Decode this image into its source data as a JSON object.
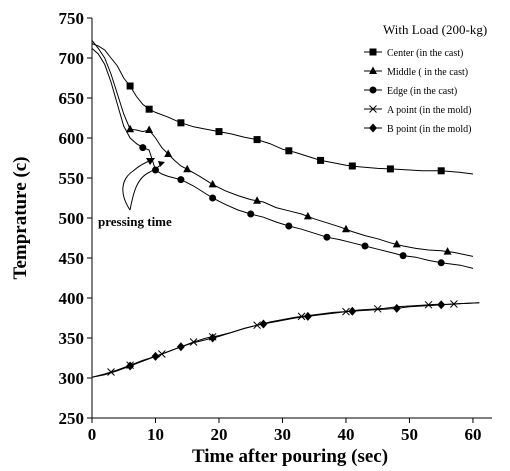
{
  "chart_data": {
    "type": "line",
    "xlabel": "Time after pouring (sec)",
    "ylabel": "Temprature (c)",
    "xlim": [
      0,
      63
    ],
    "ylim": [
      250,
      750
    ],
    "xticks": [
      "0",
      "10",
      "20",
      "30",
      "40",
      "50",
      "60"
    ],
    "yticks": [
      "250",
      "300",
      "350",
      "400",
      "450",
      "500",
      "550",
      "600",
      "650",
      "700",
      "750"
    ],
    "grid": false,
    "legend_position": "top-right",
    "legend_title": "With Load (200-kg)",
    "annotation": "pressing time",
    "series": [
      {
        "name": "Center (in the cast)",
        "marker": "square",
        "points": [
          [
            0,
            718
          ],
          [
            1,
            715
          ],
          [
            2,
            710
          ],
          [
            3,
            700
          ],
          [
            4,
            690
          ],
          [
            5,
            675
          ],
          [
            6,
            665
          ],
          [
            7,
            652
          ],
          [
            8,
            642
          ],
          [
            9,
            636
          ],
          [
            10,
            632
          ],
          [
            12,
            626
          ],
          [
            14,
            619
          ],
          [
            16,
            614
          ],
          [
            18,
            611
          ],
          [
            20,
            608
          ],
          [
            22,
            605
          ],
          [
            24,
            601
          ],
          [
            26,
            598
          ],
          [
            28,
            593
          ],
          [
            30,
            586
          ],
          [
            32,
            582
          ],
          [
            34,
            577
          ],
          [
            36,
            572
          ],
          [
            38,
            569
          ],
          [
            40,
            566
          ],
          [
            42,
            564
          ],
          [
            45,
            562
          ],
          [
            48,
            561
          ],
          [
            52,
            559
          ],
          [
            55,
            559
          ],
          [
            58,
            557
          ],
          [
            60,
            555
          ]
        ],
        "marker_x": [
          6,
          9,
          14,
          20,
          26,
          31,
          36,
          41,
          47,
          55
        ]
      },
      {
        "name": "Middle ( in the cast)",
        "marker": "triangle",
        "points": [
          [
            0,
            722
          ],
          [
            1,
            712
          ],
          [
            2,
            700
          ],
          [
            3,
            680
          ],
          [
            4,
            655
          ],
          [
            5,
            630
          ],
          [
            6,
            611
          ],
          [
            7,
            610
          ],
          [
            8,
            608
          ],
          [
            9,
            610
          ],
          [
            10,
            600
          ],
          [
            11,
            588
          ],
          [
            12,
            580
          ],
          [
            13,
            572
          ],
          [
            14,
            565
          ],
          [
            15,
            561
          ],
          [
            17,
            552
          ],
          [
            19,
            542
          ],
          [
            21,
            534
          ],
          [
            23,
            528
          ],
          [
            25,
            523
          ],
          [
            27,
            520
          ],
          [
            29,
            513
          ],
          [
            31,
            509
          ],
          [
            33,
            505
          ],
          [
            35,
            499
          ],
          [
            37,
            494
          ],
          [
            39,
            489
          ],
          [
            41,
            483
          ],
          [
            43,
            478
          ],
          [
            45,
            474
          ],
          [
            47,
            469
          ],
          [
            49,
            465
          ],
          [
            51,
            462
          ],
          [
            53,
            460
          ],
          [
            55,
            459
          ],
          [
            57,
            457
          ],
          [
            60,
            452
          ]
        ],
        "marker_x": [
          6,
          9,
          12,
          15,
          19,
          26,
          34,
          40,
          48,
          56
        ]
      },
      {
        "name": "Edge (in the cast)",
        "marker": "circle",
        "points": [
          [
            0,
            712
          ],
          [
            1,
            705
          ],
          [
            2,
            692
          ],
          [
            3,
            670
          ],
          [
            4,
            642
          ],
          [
            5,
            615
          ],
          [
            6,
            600
          ],
          [
            7,
            593
          ],
          [
            8,
            588
          ],
          [
            9,
            585
          ],
          [
            10,
            560
          ],
          [
            11,
            555
          ],
          [
            12,
            552
          ],
          [
            13,
            550
          ],
          [
            14,
            548
          ],
          [
            16,
            540
          ],
          [
            18,
            530
          ],
          [
            19,
            525
          ],
          [
            21,
            517
          ],
          [
            23,
            510
          ],
          [
            25,
            505
          ],
          [
            27,
            501
          ],
          [
            29,
            495
          ],
          [
            31,
            490
          ],
          [
            33,
            486
          ],
          [
            35,
            481
          ],
          [
            37,
            476
          ],
          [
            39,
            473
          ],
          [
            41,
            469
          ],
          [
            43,
            465
          ],
          [
            45,
            461
          ],
          [
            47,
            457
          ],
          [
            49,
            453
          ],
          [
            51,
            451
          ],
          [
            53,
            447
          ],
          [
            55,
            444
          ],
          [
            58,
            441
          ],
          [
            60,
            437
          ]
        ],
        "marker_x": [
          8,
          10,
          14,
          19,
          25,
          31,
          37,
          43,
          49,
          55
        ]
      },
      {
        "name": "A point (in the mold)",
        "marker": "x",
        "points": [
          [
            0,
            301
          ],
          [
            2,
            305
          ],
          [
            4,
            310
          ],
          [
            6,
            316
          ],
          [
            8,
            322
          ],
          [
            10,
            327
          ],
          [
            12,
            333
          ],
          [
            14,
            339
          ],
          [
            16,
            345
          ],
          [
            18,
            350
          ],
          [
            20,
            353
          ],
          [
            22,
            357
          ],
          [
            24,
            362
          ],
          [
            26,
            366
          ],
          [
            28,
            370
          ],
          [
            30,
            373
          ],
          [
            32,
            376
          ],
          [
            34,
            378
          ],
          [
            36,
            380
          ],
          [
            38,
            382
          ],
          [
            40,
            383
          ],
          [
            42,
            385
          ],
          [
            44,
            386
          ],
          [
            46,
            387
          ],
          [
            48,
            389
          ],
          [
            50,
            390
          ],
          [
            52,
            391
          ],
          [
            54,
            392
          ],
          [
            56,
            392
          ],
          [
            58,
            393
          ],
          [
            61,
            394
          ]
        ],
        "marker_x": [
          3,
          6,
          11,
          16,
          19,
          26,
          33,
          40,
          45,
          53,
          57
        ]
      },
      {
        "name": "B point (in the mold)",
        "marker": "diamond",
        "points": [
          [
            0,
            301
          ],
          [
            2,
            304
          ],
          [
            4,
            309
          ],
          [
            6,
            315
          ],
          [
            8,
            321
          ],
          [
            10,
            327
          ],
          [
            12,
            333
          ],
          [
            14,
            339
          ],
          [
            16,
            344
          ],
          [
            18,
            348
          ],
          [
            20,
            352
          ],
          [
            22,
            357
          ],
          [
            24,
            362
          ],
          [
            26,
            366
          ],
          [
            28,
            369
          ],
          [
            30,
            372
          ],
          [
            32,
            375
          ],
          [
            34,
            377
          ],
          [
            36,
            379
          ],
          [
            38,
            381
          ],
          [
            40,
            383
          ],
          [
            42,
            384
          ],
          [
            44,
            385
          ],
          [
            46,
            386
          ],
          [
            48,
            387
          ],
          [
            50,
            389
          ],
          [
            52,
            390
          ],
          [
            54,
            391
          ],
          [
            56,
            392
          ],
          [
            58,
            393
          ],
          [
            61,
            394
          ]
        ],
        "marker_x": [
          6,
          10,
          14,
          19,
          27,
          34,
          41,
          48,
          55
        ]
      }
    ]
  }
}
